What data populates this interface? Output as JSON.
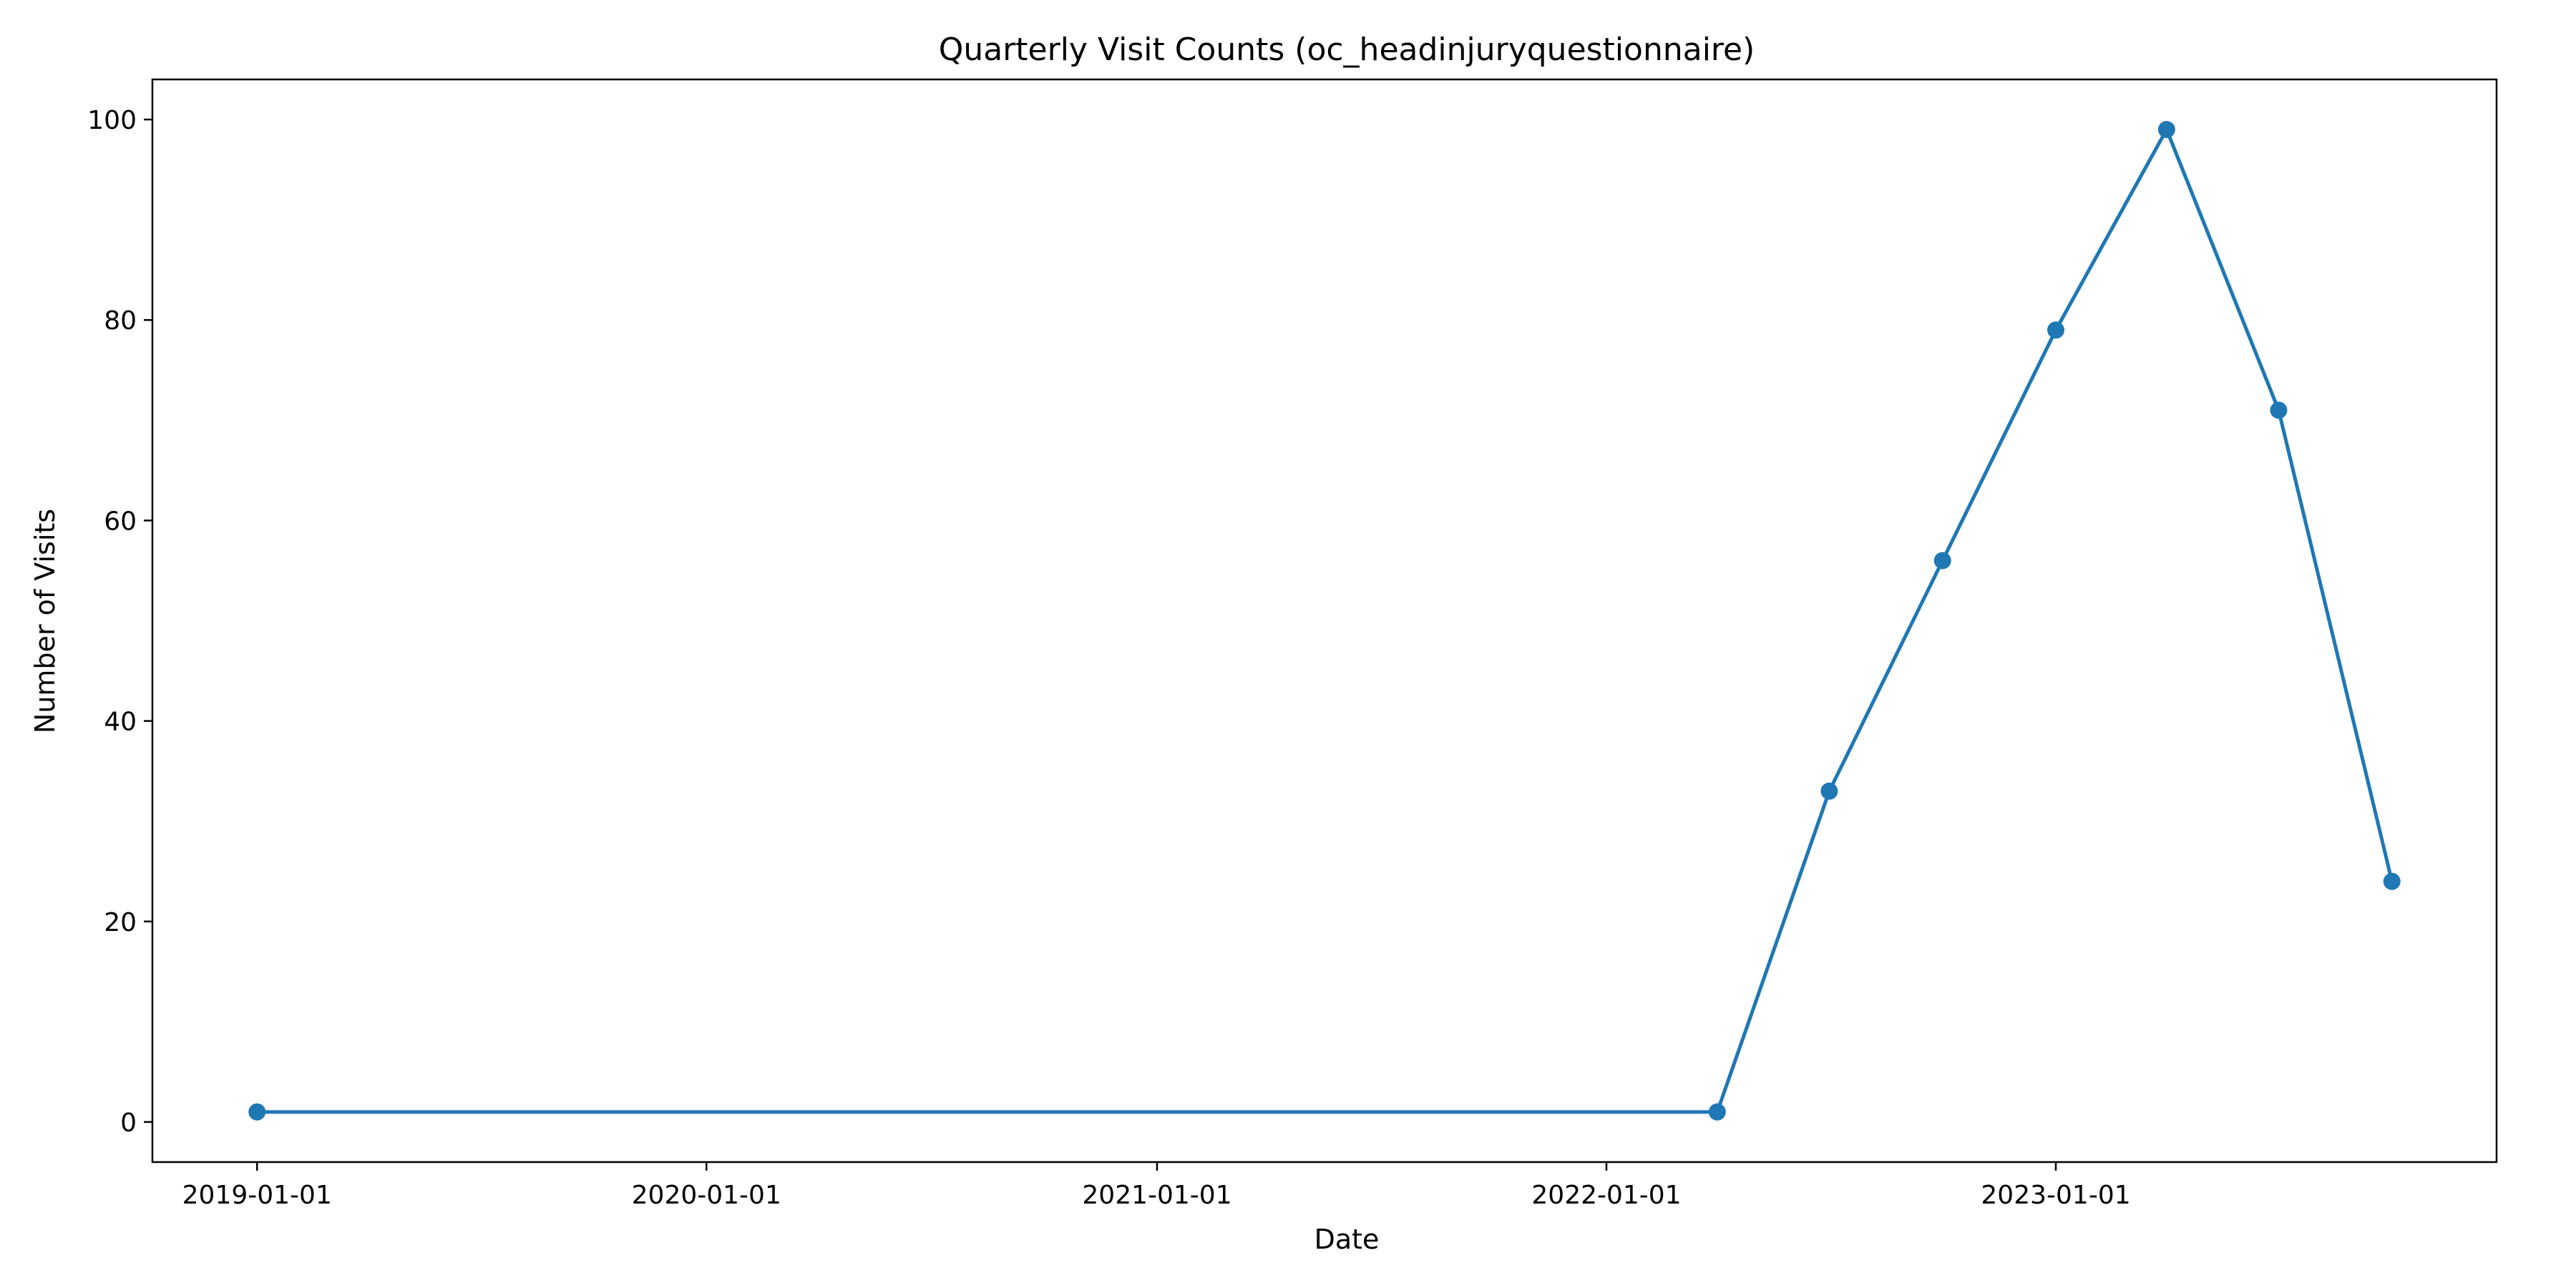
{
  "chart_data": {
    "type": "line",
    "title": "Quarterly Visit Counts (oc_headinjuryquestionnaire)",
    "xlabel": "Date",
    "ylabel": "Number of Visits",
    "x": [
      "2019-01-01",
      "2022-04-01",
      "2022-07-01",
      "2022-10-01",
      "2023-01-01",
      "2023-04-01",
      "2023-07-01",
      "2023-10-01"
    ],
    "series": [
      {
        "name": "Visits",
        "values": [
          1,
          1,
          33,
          56,
          79,
          99,
          71,
          24
        ],
        "color": "#1f77b4"
      }
    ],
    "xlim": [
      "2018-10-08",
      "2023-12-25"
    ],
    "ylim": [
      -4,
      104
    ],
    "xticks": [
      "2019-01-01",
      "2020-01-01",
      "2021-01-01",
      "2022-01-01",
      "2023-01-01"
    ],
    "yticks": [
      0,
      20,
      40,
      60,
      80,
      100
    ],
    "grid": false,
    "marker": "circle"
  }
}
